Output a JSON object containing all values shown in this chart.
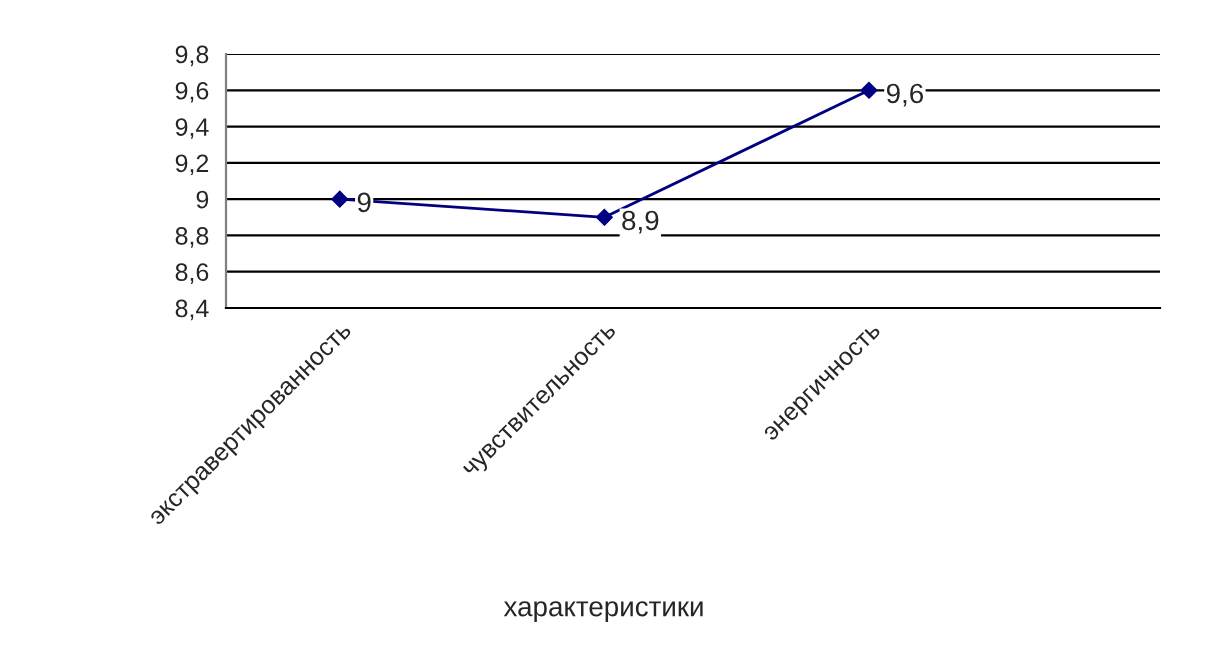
{
  "chart_data": {
    "type": "line",
    "xlabel": "характеристики",
    "categories": [
      "экстравертированность",
      "чувствительность",
      "энергичность"
    ],
    "series": [
      {
        "color": "#000080",
        "values": [
          9,
          8.9,
          9.6
        ],
        "value_labels": [
          "9",
          "8,9",
          "9,6"
        ]
      }
    ],
    "ylim": [
      8.4,
      9.8
    ],
    "yticks": [
      {
        "value": 8.4,
        "label": "8,4"
      },
      {
        "value": 8.6,
        "label": "8,6"
      },
      {
        "value": 8.8,
        "label": "8,8"
      },
      9,
      {
        "value": 9.2,
        "label": "9,2"
      },
      {
        "value": 9.4,
        "label": "9,4"
      },
      {
        "value": 9.6,
        "label": "9,6"
      },
      {
        "value": 9.8,
        "label": "9,8"
      }
    ],
    "grid": "y",
    "legend": false,
    "marker": "diamond",
    "line_style": "solid"
  }
}
